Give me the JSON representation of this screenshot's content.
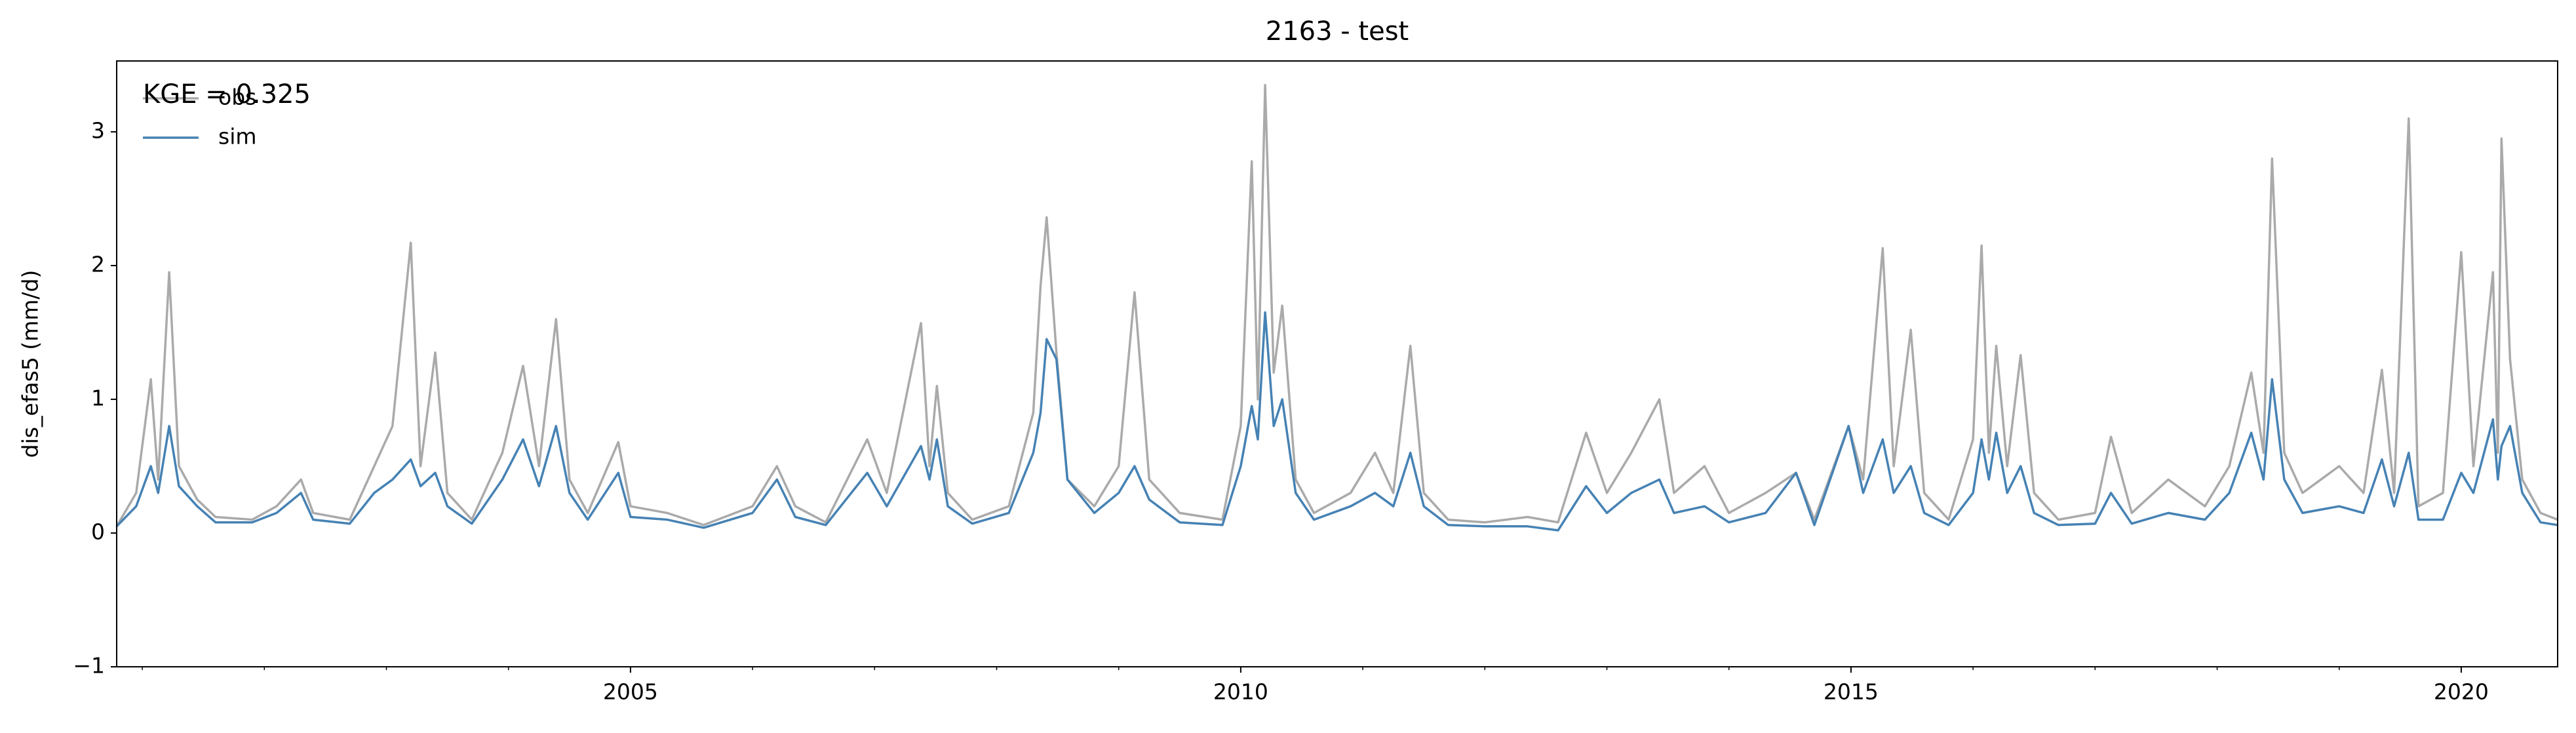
{
  "chart_data": {
    "type": "line",
    "title": "2163 - test",
    "ylabel": "dis_efas5 (mm/d)",
    "annotation": "KGE = 0.325",
    "legend": "upper left",
    "x": [
      2000.79,
      2000.95,
      2001.07,
      2001.13,
      2001.22,
      2001.3,
      2001.45,
      2001.6,
      2001.9,
      2002.1,
      2002.3,
      2002.4,
      2002.7,
      2002.9,
      2003.05,
      2003.2,
      2003.28,
      2003.4,
      2003.5,
      2003.7,
      2003.95,
      2004.12,
      2004.25,
      2004.39,
      2004.5,
      2004.65,
      2004.9,
      2005.0,
      2005.3,
      2005.6,
      2006.0,
      2006.2,
      2006.35,
      2006.6,
      2006.94,
      2007.1,
      2007.38,
      2007.45,
      2007.51,
      2007.6,
      2007.8,
      2008.1,
      2008.3,
      2008.36,
      2008.41,
      2008.49,
      2008.58,
      2008.8,
      2009.0,
      2009.13,
      2009.25,
      2009.5,
      2009.85,
      2010.0,
      2010.09,
      2010.14,
      2010.2,
      2010.27,
      2010.34,
      2010.45,
      2010.6,
      2010.9,
      2011.1,
      2011.25,
      2011.39,
      2011.5,
      2011.7,
      2012.0,
      2012.35,
      2012.6,
      2012.83,
      2013.0,
      2013.2,
      2013.43,
      2013.55,
      2013.8,
      2014.0,
      2014.3,
      2014.55,
      2014.7,
      2014.98,
      2015.1,
      2015.26,
      2015.35,
      2015.49,
      2015.6,
      2015.8,
      2016.0,
      2016.07,
      2016.13,
      2016.19,
      2016.28,
      2016.39,
      2016.5,
      2016.7,
      2017.0,
      2017.13,
      2017.3,
      2017.6,
      2017.9,
      2018.1,
      2018.28,
      2018.38,
      2018.45,
      2018.55,
      2018.7,
      2019.0,
      2019.2,
      2019.35,
      2019.45,
      2019.57,
      2019.65,
      2019.85,
      2020.0,
      2020.1,
      2020.26,
      2020.3,
      2020.33,
      2020.4,
      2020.5,
      2020.65,
      2020.79
    ],
    "series": [
      {
        "name": "obs",
        "color": "#aaaaaa",
        "values": [
          0.05,
          0.3,
          1.15,
          0.4,
          1.95,
          0.5,
          0.25,
          0.12,
          0.1,
          0.2,
          0.4,
          0.15,
          0.1,
          0.5,
          0.8,
          2.17,
          0.5,
          1.35,
          0.3,
          0.1,
          0.6,
          1.25,
          0.5,
          1.6,
          0.4,
          0.15,
          0.68,
          0.2,
          0.15,
          0.06,
          0.2,
          0.5,
          0.2,
          0.08,
          0.7,
          0.3,
          1.57,
          0.5,
          1.1,
          0.3,
          0.1,
          0.2,
          0.9,
          1.85,
          2.36,
          1.35,
          0.4,
          0.2,
          0.5,
          1.8,
          0.4,
          0.15,
          0.1,
          0.8,
          2.78,
          1.0,
          3.35,
          1.2,
          1.7,
          0.4,
          0.15,
          0.3,
          0.6,
          0.3,
          1.4,
          0.3,
          0.1,
          0.08,
          0.12,
          0.08,
          0.75,
          0.3,
          0.6,
          1.0,
          0.3,
          0.5,
          0.15,
          0.3,
          0.45,
          0.1,
          0.8,
          0.4,
          2.13,
          0.5,
          1.52,
          0.3,
          0.1,
          0.7,
          2.15,
          0.6,
          1.4,
          0.5,
          1.33,
          0.3,
          0.1,
          0.15,
          0.72,
          0.15,
          0.4,
          0.2,
          0.5,
          1.2,
          0.6,
          2.8,
          0.6,
          0.3,
          0.5,
          0.3,
          1.22,
          0.3,
          3.1,
          0.2,
          0.3,
          2.1,
          0.5,
          1.95,
          0.6,
          2.95,
          1.3,
          0.4,
          0.15,
          0.1
        ]
      },
      {
        "name": "sim",
        "color": "#4682b4",
        "values": [
          0.05,
          0.2,
          0.5,
          0.3,
          0.8,
          0.35,
          0.2,
          0.08,
          0.08,
          0.15,
          0.3,
          0.1,
          0.07,
          0.3,
          0.4,
          0.55,
          0.35,
          0.45,
          0.2,
          0.07,
          0.4,
          0.7,
          0.35,
          0.8,
          0.3,
          0.1,
          0.45,
          0.12,
          0.1,
          0.04,
          0.15,
          0.4,
          0.12,
          0.06,
          0.45,
          0.2,
          0.65,
          0.4,
          0.7,
          0.2,
          0.07,
          0.15,
          0.6,
          0.9,
          1.45,
          1.3,
          0.4,
          0.15,
          0.3,
          0.5,
          0.25,
          0.08,
          0.06,
          0.5,
          0.95,
          0.7,
          1.65,
          0.8,
          1.0,
          0.3,
          0.1,
          0.2,
          0.3,
          0.2,
          0.6,
          0.2,
          0.06,
          0.05,
          0.05,
          0.02,
          0.35,
          0.15,
          0.3,
          0.4,
          0.15,
          0.2,
          0.08,
          0.15,
          0.45,
          0.06,
          0.8,
          0.3,
          0.7,
          0.3,
          0.5,
          0.15,
          0.06,
          0.3,
          0.7,
          0.4,
          0.75,
          0.3,
          0.5,
          0.15,
          0.06,
          0.07,
          0.3,
          0.07,
          0.15,
          0.1,
          0.3,
          0.75,
          0.4,
          1.15,
          0.4,
          0.15,
          0.2,
          0.15,
          0.55,
          0.2,
          0.6,
          0.1,
          0.1,
          0.45,
          0.3,
          0.85,
          0.4,
          0.65,
          0.8,
          0.3,
          0.08,
          0.06
        ]
      }
    ],
    "xlim": [
      2000.79,
      2020.79
    ],
    "xticks": [
      2005,
      2010,
      2015,
      2020
    ],
    "xminorticks": [
      2001,
      2002,
      2003,
      2004,
      2006,
      2007,
      2008,
      2009,
      2011,
      2012,
      2013,
      2014,
      2016,
      2017,
      2018,
      2019
    ],
    "ylim": [
      -1,
      3.53
    ],
    "yticks": [
      {
        "value": -1,
        "label": "−1"
      },
      0,
      1,
      2,
      3
    ]
  }
}
